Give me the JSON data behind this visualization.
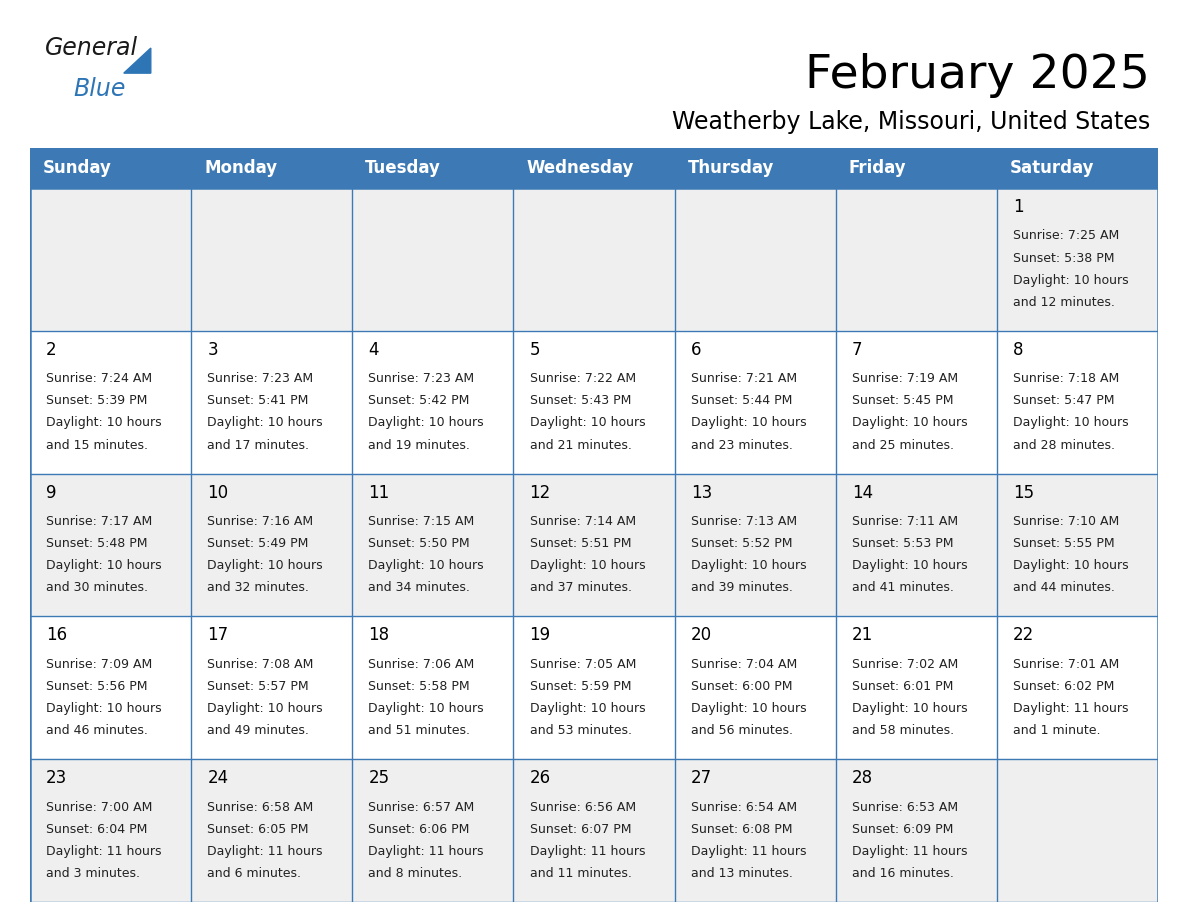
{
  "title": "February 2025",
  "subtitle": "Weatherby Lake, Missouri, United States",
  "header_bg": "#3d7ab5",
  "header_text_color": "#ffffff",
  "cell_bg_odd": "#efefef",
  "cell_bg_even": "#ffffff",
  "grid_line_color": "#3d7ab5",
  "day_headers": [
    "Sunday",
    "Monday",
    "Tuesday",
    "Wednesday",
    "Thursday",
    "Friday",
    "Saturday"
  ],
  "title_fontsize": 34,
  "subtitle_fontsize": 17,
  "header_fontsize": 12,
  "cell_fontsize": 9,
  "day_number_fontsize": 12,
  "logo_general_color": "#1a1a1a",
  "logo_blue_color": "#2e75b6",
  "days": [
    {
      "day": 1,
      "row": 0,
      "col": 6,
      "sunrise": "7:25 AM",
      "sunset": "5:38 PM",
      "daylight": "10 hours",
      "daylight2": "and 12 minutes."
    },
    {
      "day": 2,
      "row": 1,
      "col": 0,
      "sunrise": "7:24 AM",
      "sunset": "5:39 PM",
      "daylight": "10 hours",
      "daylight2": "and 15 minutes."
    },
    {
      "day": 3,
      "row": 1,
      "col": 1,
      "sunrise": "7:23 AM",
      "sunset": "5:41 PM",
      "daylight": "10 hours",
      "daylight2": "and 17 minutes."
    },
    {
      "day": 4,
      "row": 1,
      "col": 2,
      "sunrise": "7:23 AM",
      "sunset": "5:42 PM",
      "daylight": "10 hours",
      "daylight2": "and 19 minutes."
    },
    {
      "day": 5,
      "row": 1,
      "col": 3,
      "sunrise": "7:22 AM",
      "sunset": "5:43 PM",
      "daylight": "10 hours",
      "daylight2": "and 21 minutes."
    },
    {
      "day": 6,
      "row": 1,
      "col": 4,
      "sunrise": "7:21 AM",
      "sunset": "5:44 PM",
      "daylight": "10 hours",
      "daylight2": "and 23 minutes."
    },
    {
      "day": 7,
      "row": 1,
      "col": 5,
      "sunrise": "7:19 AM",
      "sunset": "5:45 PM",
      "daylight": "10 hours",
      "daylight2": "and 25 minutes."
    },
    {
      "day": 8,
      "row": 1,
      "col": 6,
      "sunrise": "7:18 AM",
      "sunset": "5:47 PM",
      "daylight": "10 hours",
      "daylight2": "and 28 minutes."
    },
    {
      "day": 9,
      "row": 2,
      "col": 0,
      "sunrise": "7:17 AM",
      "sunset": "5:48 PM",
      "daylight": "10 hours",
      "daylight2": "and 30 minutes."
    },
    {
      "day": 10,
      "row": 2,
      "col": 1,
      "sunrise": "7:16 AM",
      "sunset": "5:49 PM",
      "daylight": "10 hours",
      "daylight2": "and 32 minutes."
    },
    {
      "day": 11,
      "row": 2,
      "col": 2,
      "sunrise": "7:15 AM",
      "sunset": "5:50 PM",
      "daylight": "10 hours",
      "daylight2": "and 34 minutes."
    },
    {
      "day": 12,
      "row": 2,
      "col": 3,
      "sunrise": "7:14 AM",
      "sunset": "5:51 PM",
      "daylight": "10 hours",
      "daylight2": "and 37 minutes."
    },
    {
      "day": 13,
      "row": 2,
      "col": 4,
      "sunrise": "7:13 AM",
      "sunset": "5:52 PM",
      "daylight": "10 hours",
      "daylight2": "and 39 minutes."
    },
    {
      "day": 14,
      "row": 2,
      "col": 5,
      "sunrise": "7:11 AM",
      "sunset": "5:53 PM",
      "daylight": "10 hours",
      "daylight2": "and 41 minutes."
    },
    {
      "day": 15,
      "row": 2,
      "col": 6,
      "sunrise": "7:10 AM",
      "sunset": "5:55 PM",
      "daylight": "10 hours",
      "daylight2": "and 44 minutes."
    },
    {
      "day": 16,
      "row": 3,
      "col": 0,
      "sunrise": "7:09 AM",
      "sunset": "5:56 PM",
      "daylight": "10 hours",
      "daylight2": "and 46 minutes."
    },
    {
      "day": 17,
      "row": 3,
      "col": 1,
      "sunrise": "7:08 AM",
      "sunset": "5:57 PM",
      "daylight": "10 hours",
      "daylight2": "and 49 minutes."
    },
    {
      "day": 18,
      "row": 3,
      "col": 2,
      "sunrise": "7:06 AM",
      "sunset": "5:58 PM",
      "daylight": "10 hours",
      "daylight2": "and 51 minutes."
    },
    {
      "day": 19,
      "row": 3,
      "col": 3,
      "sunrise": "7:05 AM",
      "sunset": "5:59 PM",
      "daylight": "10 hours",
      "daylight2": "and 53 minutes."
    },
    {
      "day": 20,
      "row": 3,
      "col": 4,
      "sunrise": "7:04 AM",
      "sunset": "6:00 PM",
      "daylight": "10 hours",
      "daylight2": "and 56 minutes."
    },
    {
      "day": 21,
      "row": 3,
      "col": 5,
      "sunrise": "7:02 AM",
      "sunset": "6:01 PM",
      "daylight": "10 hours",
      "daylight2": "and 58 minutes."
    },
    {
      "day": 22,
      "row": 3,
      "col": 6,
      "sunrise": "7:01 AM",
      "sunset": "6:02 PM",
      "daylight": "11 hours",
      "daylight2": "and 1 minute."
    },
    {
      "day": 23,
      "row": 4,
      "col": 0,
      "sunrise": "7:00 AM",
      "sunset": "6:04 PM",
      "daylight": "11 hours",
      "daylight2": "and 3 minutes."
    },
    {
      "day": 24,
      "row": 4,
      "col": 1,
      "sunrise": "6:58 AM",
      "sunset": "6:05 PM",
      "daylight": "11 hours",
      "daylight2": "and 6 minutes."
    },
    {
      "day": 25,
      "row": 4,
      "col": 2,
      "sunrise": "6:57 AM",
      "sunset": "6:06 PM",
      "daylight": "11 hours",
      "daylight2": "and 8 minutes."
    },
    {
      "day": 26,
      "row": 4,
      "col": 3,
      "sunrise": "6:56 AM",
      "sunset": "6:07 PM",
      "daylight": "11 hours",
      "daylight2": "and 11 minutes."
    },
    {
      "day": 27,
      "row": 4,
      "col": 4,
      "sunrise": "6:54 AM",
      "sunset": "6:08 PM",
      "daylight": "11 hours",
      "daylight2": "and 13 minutes."
    },
    {
      "day": 28,
      "row": 4,
      "col": 5,
      "sunrise": "6:53 AM",
      "sunset": "6:09 PM",
      "daylight": "11 hours",
      "daylight2": "and 16 minutes."
    }
  ]
}
